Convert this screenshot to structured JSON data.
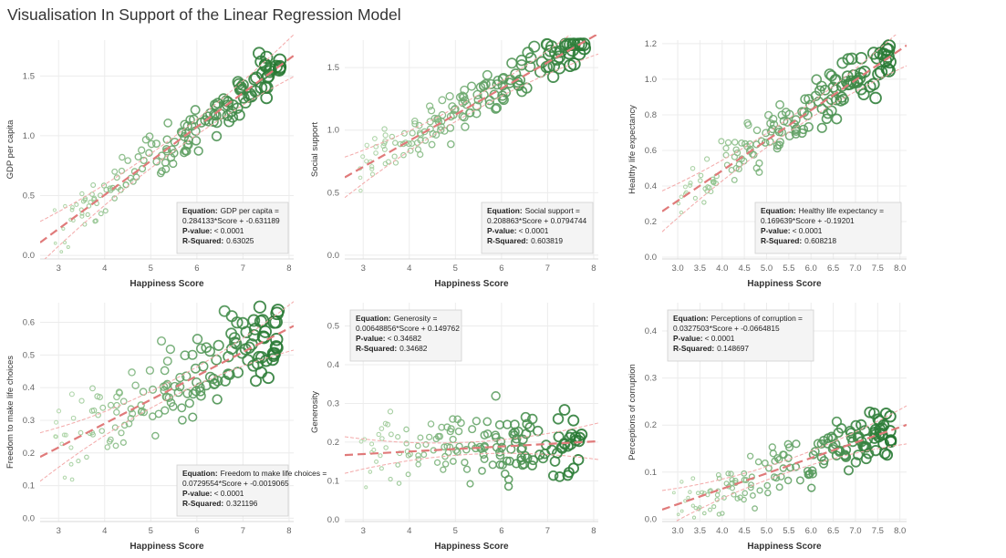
{
  "title": "Visualisation In Support of the Linear Regression Model",
  "colors": {
    "light_green": "#b5dba7",
    "mid_green": "#6fb86a",
    "dark_green": "#2e7d32",
    "trend": "#e07a7a",
    "band": "#f3a9a9",
    "grid": "#ececec"
  },
  "chart_data": [
    {
      "type": "scatter",
      "xlabel": "Happiness Score",
      "ylabel": "GDP per capita",
      "xlim": [
        2.6,
        8.1
      ],
      "ylim": [
        -0.03,
        1.8
      ],
      "xticks": [
        "3",
        "4",
        "5",
        "6",
        "7",
        "8"
      ],
      "yticks": [
        "0.0",
        "0.5",
        "1.0",
        "1.5"
      ],
      "slope": 0.284133,
      "intercept": -0.631189,
      "band_scale": 0.13,
      "noise": 0.18,
      "stats": {
        "eq_label": "Equation:",
        "eq_line1": "GDP per capita =",
        "eq_line2": "0.284133*Score + -0.631189",
        "p_label": "P-value:",
        "p_value": "< 0.0001",
        "r_label": "R-Squared:",
        "r_value": "0.63025"
      },
      "stats_position": "bottom-right"
    },
    {
      "type": "scatter",
      "xlabel": "Happiness Score",
      "ylabel": "Social support",
      "xlim": [
        2.6,
        8.1
      ],
      "ylim": [
        -0.03,
        1.72
      ],
      "xticks": [
        "3",
        "4",
        "5",
        "6",
        "7",
        "8"
      ],
      "yticks": [
        "0.0",
        "0.5",
        "1.0",
        "1.5"
      ],
      "slope": 0.208863,
      "intercept": 0.0794744,
      "band_scale": 0.12,
      "noise": 0.17,
      "stats": {
        "eq_label": "Equation:",
        "eq_line1": "Social support =",
        "eq_line2": "0.208863*Score + 0.0794744",
        "p_label": "P-value:",
        "p_value": "< 0.0001",
        "r_label": "R-Squared:",
        "r_value": "0.603819"
      },
      "stats_position": "bottom-right"
    },
    {
      "type": "scatter",
      "xlabel": "Happiness Score",
      "ylabel": "Healthy life expectancy",
      "xlim": [
        2.65,
        8.15
      ],
      "ylim": [
        -0.01,
        1.22
      ],
      "xticks": [
        "3.0",
        "3.5",
        "4.0",
        "4.5",
        "5.0",
        "5.5",
        "6.0",
        "6.5",
        "7.0",
        "7.5",
        "8.0"
      ],
      "yticks": [
        "0.0",
        "0.2",
        "0.4",
        "0.6",
        "0.8",
        "1.0",
        "1.2"
      ],
      "slope": 0.169639,
      "intercept": -0.19201,
      "band_scale": 0.085,
      "noise": 0.13,
      "stats": {
        "eq_label": "Equation:",
        "eq_line1": "Healthy life expectancy =",
        "eq_line2": "0.169639*Score + -0.19201",
        "p_label": "P-value:",
        "p_value": "< 0.0001",
        "r_label": "R-Squared:",
        "r_value": "0.608218"
      },
      "stats_position": "bottom-right"
    },
    {
      "type": "scatter",
      "xlabel": "Happiness Score",
      "ylabel": "Freedom to make life choices",
      "xlim": [
        2.6,
        8.1
      ],
      "ylim": [
        -0.01,
        0.66
      ],
      "xticks": [
        "3",
        "4",
        "5",
        "6",
        "7",
        "8"
      ],
      "yticks": [
        "0.0",
        "0.1",
        "0.2",
        "0.3",
        "0.4",
        "0.5",
        "0.6"
      ],
      "slope": 0.0729554,
      "intercept": -0.0019065,
      "band_scale": 0.055,
      "noise": 0.11,
      "stats": {
        "eq_label": "Equation:",
        "eq_line1": "Freedom to make life choices =",
        "eq_line2": "0.0729554*Score + -0.0019065",
        "p_label": "P-value:",
        "p_value": "< 0.0001",
        "r_label": "R-Squared:",
        "r_value": "0.321196"
      },
      "stats_position": "bottom-right"
    },
    {
      "type": "scatter",
      "xlabel": "Happiness Score",
      "ylabel": "Generosity",
      "xlim": [
        2.6,
        8.1
      ],
      "ylim": [
        -0.005,
        0.56
      ],
      "xticks": [
        "3",
        "4",
        "5",
        "6",
        "7",
        "8"
      ],
      "yticks": [
        "0.0",
        "0.1",
        "0.2",
        "0.3",
        "0.4",
        "0.5"
      ],
      "slope": 0.00648856,
      "intercept": 0.149762,
      "band_scale": 0.035,
      "noise": 0.08,
      "stats": {
        "eq_label": "Equation:",
        "eq_line1": "Generosity =",
        "eq_line2": "0.00648856*Score + 0.149762",
        "p_label": "P-value:",
        "p_value": "< 0.34682",
        "r_label": "R-Squared:",
        "r_value": "0.34682"
      },
      "stats_position": "top-left"
    },
    {
      "type": "scatter",
      "xlabel": "Happiness Score",
      "ylabel": "Perceptions of corruption",
      "xlim": [
        2.65,
        8.15
      ],
      "ylim": [
        -0.005,
        0.46
      ],
      "xticks": [
        "3.0",
        "3.5",
        "4.0",
        "4.5",
        "5.0",
        "5.5",
        "6.0",
        "6.5",
        "7.0",
        "7.5",
        "8.0"
      ],
      "yticks": [
        "0.0",
        "0.1",
        "0.2",
        "0.3",
        "0.4"
      ],
      "slope": 0.0327503,
      "intercept": -0.0664815,
      "band_scale": 0.03,
      "noise": 0.05,
      "stats": {
        "eq_label": "Equation:",
        "eq_line1": "Perceptions of corruption =",
        "eq_line2": "0.0327503*Score + -0.0664815",
        "p_label": "P-value:",
        "p_value": "< 0.0001",
        "r_label": "R-Squared:",
        "r_value": "0.148697"
      },
      "stats_position": "top-left"
    }
  ]
}
